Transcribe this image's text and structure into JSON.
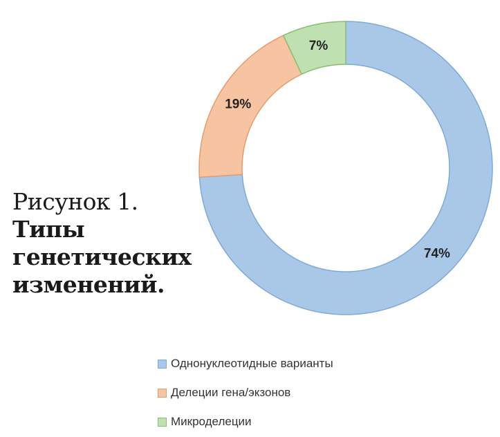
{
  "caption": {
    "figure_label": "Рисунок 1.",
    "title": "Типы генетических изменений."
  },
  "colors": {
    "snv": "#a9c8e8",
    "snv_stroke": "#7faad6",
    "deletions": "#f6c4a0",
    "deletions_stroke": "#e59c6c",
    "micro": "#bfe0b0",
    "micro_stroke": "#86bf6f"
  },
  "chart_data": {
    "type": "pie",
    "donut": true,
    "categories": [
      "Однонуклеотидные варианты",
      "Делеции гена/экзонов",
      "Микроделеции"
    ],
    "values": [
      74,
      19,
      7
    ],
    "data_labels": [
      "74%",
      "19%",
      "7%"
    ],
    "legend_placement": "bottom"
  },
  "legend": {
    "items": [
      {
        "label": "Однонуклеотидные варианты"
      },
      {
        "label": "Делеции гена/экзонов"
      },
      {
        "label": "Микроделеции"
      }
    ]
  }
}
